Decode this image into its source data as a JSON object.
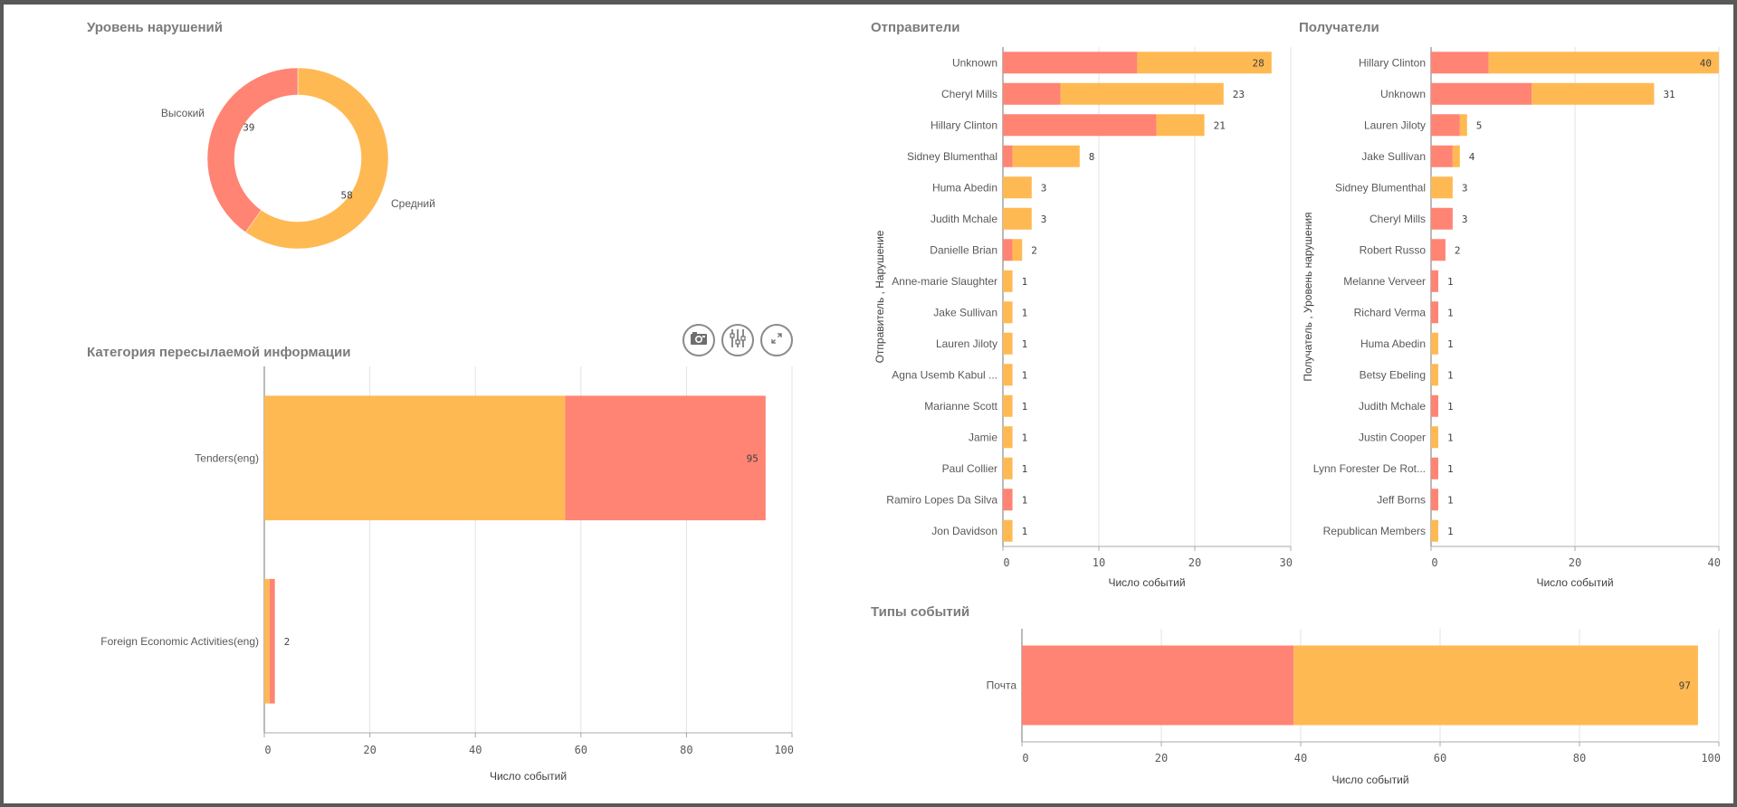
{
  "colors": {
    "high": "#ff8473",
    "medium": "#ffb953"
  },
  "panels": {
    "severity": {
      "title": "Уровень нарушений"
    },
    "category": {
      "title": "Категория пересылаемой информации"
    },
    "senders": {
      "title": "Отправители"
    },
    "recipients": {
      "title": "Получатели"
    },
    "event_types": {
      "title": "Типы событий"
    }
  },
  "toolbar": {
    "buttons": [
      {
        "name": "snapshot-button",
        "icon": "camera-icon"
      },
      {
        "name": "exploration-button",
        "icon": "sliders-icon"
      },
      {
        "name": "fullscreen-button",
        "icon": "expand-icon"
      }
    ]
  },
  "chart_data": [
    {
      "id": "severity",
      "type": "pie",
      "title": "Уровень нарушений",
      "donut": true,
      "slices": [
        {
          "label": "Средний",
          "value": 58,
          "color": "#ffb953"
        },
        {
          "label": "Высокий",
          "value": 39,
          "color": "#ff8473"
        }
      ]
    },
    {
      "id": "category",
      "type": "bar",
      "orientation": "horizontal",
      "stacked": true,
      "title": "Категория пересылаемой информации",
      "categories": [
        "Tenders(eng)",
        "Foreign Economic Activities(eng)"
      ],
      "series": [
        {
          "name": "Средний",
          "color": "#ffb953",
          "values": [
            57,
            1
          ]
        },
        {
          "name": "Высокий",
          "color": "#ff8473",
          "values": [
            38,
            1
          ]
        }
      ],
      "totals": [
        95,
        2
      ],
      "xlabel": "Число событий",
      "ylabel": "",
      "xlim": [
        0,
        100
      ],
      "xticks": [
        0,
        20,
        40,
        60,
        80,
        100
      ],
      "grid": true
    },
    {
      "id": "senders",
      "type": "bar",
      "orientation": "horizontal",
      "stacked": true,
      "title": "Отправители",
      "categories": [
        "Unknown",
        "Cheryl Mills",
        "Hillary Clinton",
        "Sidney Blumenthal",
        "Huma Abedin",
        "Judith Mchale",
        "Danielle Brian",
        "Anne-marie Slaughter",
        "Jake Sullivan",
        "Lauren Jiloty",
        "Agna Usemb Kabul ...",
        "Marianne Scott",
        "Jamie",
        "Paul Collier",
        "Ramiro Lopes Da Silva",
        "Jon Davidson"
      ],
      "series": [
        {
          "name": "Высокий",
          "color": "#ff8473",
          "values": [
            14,
            6,
            16,
            1,
            0,
            0,
            1,
            0,
            0,
            0,
            0,
            0,
            0,
            0,
            1,
            0
          ]
        },
        {
          "name": "Средний",
          "color": "#ffb953",
          "values": [
            14,
            17,
            5,
            7,
            3,
            3,
            1,
            1,
            1,
            1,
            1,
            1,
            1,
            1,
            0,
            1
          ]
        }
      ],
      "totals": [
        28,
        23,
        21,
        8,
        3,
        3,
        2,
        1,
        1,
        1,
        1,
        1,
        1,
        1,
        1,
        1
      ],
      "xlabel": "Число событий",
      "ylabel": "Отправитель , Нарушение",
      "xlim": [
        0,
        30
      ],
      "xticks": [
        0,
        10,
        20,
        30
      ],
      "grid": true
    },
    {
      "id": "recipients",
      "type": "bar",
      "orientation": "horizontal",
      "stacked": true,
      "title": "Получатели",
      "categories": [
        "Hillary Clinton",
        "Unknown",
        "Lauren Jiloty",
        "Jake Sullivan",
        "Sidney Blumenthal",
        "Cheryl Mills",
        "Robert Russo",
        "Melanne Verveer",
        "Richard Verma",
        "Huma Abedin",
        "Betsy Ebeling",
        "Judith Mchale",
        "Justin Cooper",
        "Lynn Forester De Rot...",
        "Jeff Borns",
        "Republican Members"
      ],
      "series": [
        {
          "name": "Высокий",
          "color": "#ff8473",
          "values": [
            8,
            14,
            4,
            3,
            0,
            3,
            2,
            1,
            1,
            0,
            0,
            1,
            0,
            1,
            1,
            0
          ]
        },
        {
          "name": "Средний",
          "color": "#ffb953",
          "values": [
            32,
            17,
            1,
            1,
            3,
            0,
            0,
            0,
            0,
            1,
            1,
            0,
            1,
            0,
            0,
            1
          ]
        }
      ],
      "totals": [
        40,
        31,
        5,
        4,
        3,
        3,
        2,
        1,
        1,
        1,
        1,
        1,
        1,
        1,
        1,
        1
      ],
      "xlabel": "Число событий",
      "ylabel": "Получатель , Уровень нарушения",
      "xlim": [
        0,
        40
      ],
      "xticks": [
        0,
        20,
        40
      ],
      "grid": true
    },
    {
      "id": "event_types",
      "type": "bar",
      "orientation": "horizontal",
      "stacked": true,
      "title": "Типы событий",
      "categories": [
        "Почта"
      ],
      "series": [
        {
          "name": "Высокий",
          "color": "#ff8473",
          "values": [
            39
          ]
        },
        {
          "name": "Средний",
          "color": "#ffb953",
          "values": [
            58
          ]
        }
      ],
      "totals": [
        97
      ],
      "xlabel": "Число событий",
      "ylabel": "",
      "xlim": [
        0,
        100
      ],
      "xticks": [
        0,
        20,
        40,
        60,
        80,
        100
      ],
      "grid": true
    }
  ]
}
